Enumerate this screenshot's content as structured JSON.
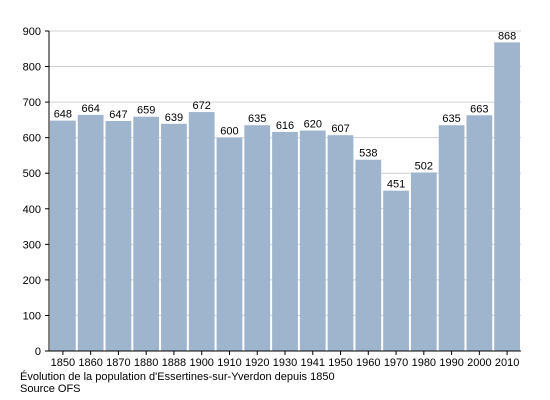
{
  "chart_data": {
    "type": "bar",
    "categories": [
      "1850",
      "1860",
      "1870",
      "1880",
      "1888",
      "1900",
      "1910",
      "1920",
      "1930",
      "1941",
      "1950",
      "1960",
      "1970",
      "1980",
      "1990",
      "2000",
      "2010"
    ],
    "values": [
      648,
      664,
      647,
      659,
      639,
      672,
      600,
      635,
      616,
      620,
      607,
      538,
      451,
      502,
      635,
      663,
      868
    ],
    "data_labels": [
      "648",
      "664",
      "647",
      "659",
      "639",
      "672",
      "600",
      "635",
      "616",
      "620",
      "607",
      "538",
      "451",
      "502",
      "635",
      "663",
      "868"
    ],
    "yticks": [
      0,
      100,
      200,
      300,
      400,
      500,
      600,
      700,
      800,
      900
    ],
    "ylim": [
      0,
      900
    ],
    "grid": true,
    "bar_color": "#9fb5cd",
    "title": "Évolution de la population d'Essertines-sur-Yverdon depuis 1850",
    "source": "Source OFS"
  }
}
